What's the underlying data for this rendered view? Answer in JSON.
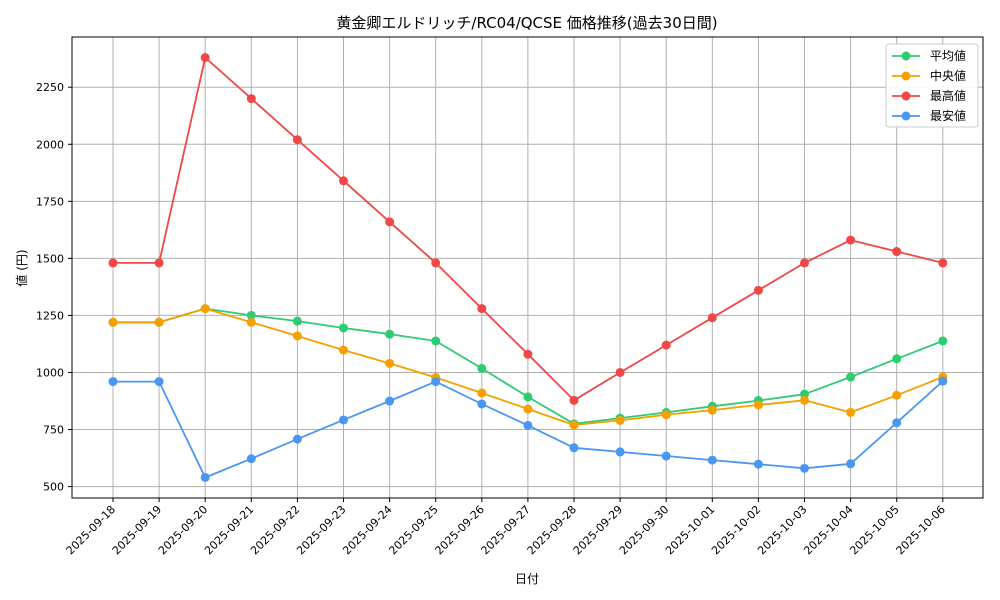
{
  "chart_data": {
    "type": "line",
    "title": "黄金卿エルドリッチ/RC04/QCSE 価格推移(過去30日間)",
    "xlabel": "日付",
    "ylabel": "値 (円)",
    "categories": [
      "2025-09-18",
      "2025-09-19",
      "2025-09-20",
      "2025-09-21",
      "2025-09-22",
      "2025-09-23",
      "2025-09-24",
      "2025-09-25",
      "2025-09-26",
      "2025-09-27",
      "2025-09-28",
      "2025-09-29",
      "2025-09-30",
      "2025-10-01",
      "2025-10-02",
      "2025-10-03",
      "2025-10-04",
      "2025-10-05",
      "2025-10-06"
    ],
    "yticks": [
      500,
      750,
      1000,
      1250,
      1500,
      1750,
      2000,
      2250
    ],
    "ylim": [
      450,
      2470
    ],
    "grid": true,
    "legend_position": "top-right",
    "series": [
      {
        "name": "平均値",
        "color": "#2ecc71",
        "values": [
          1220,
          1220,
          1280,
          1250,
          1225,
          1195,
          1168,
          1138,
          1018,
          893,
          775,
          800,
          825,
          852,
          877,
          905,
          980,
          1060,
          1138
        ]
      },
      {
        "name": "中央値",
        "color": "#f5a000",
        "values": [
          1220,
          1220,
          1280,
          1220,
          1160,
          1098,
          1040,
          978,
          910,
          840,
          770,
          790,
          815,
          835,
          858,
          878,
          825,
          900,
          980
        ]
      },
      {
        "name": "最高値",
        "color": "#f04747",
        "values": [
          1480,
          1480,
          2380,
          2200,
          2020,
          1840,
          1660,
          1480,
          1280,
          1080,
          878,
          1000,
          1120,
          1240,
          1360,
          1480,
          1580,
          1530,
          1480
        ]
      },
      {
        "name": "最安値",
        "color": "#4a96f5",
        "values": [
          960,
          960,
          540,
          622,
          708,
          792,
          875,
          960,
          862,
          768,
          670,
          652,
          634,
          616,
          598,
          580,
          600,
          780,
          962
        ]
      }
    ]
  }
}
